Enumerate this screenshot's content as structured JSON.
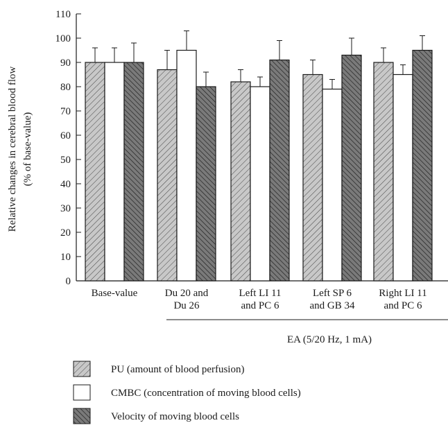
{
  "chart_data": {
    "type": "bar",
    "ylabel_line1": "Relative changes in cerebral blood flow",
    "ylabel_line2": "(% of base-value)",
    "ylim": [
      0,
      110
    ],
    "yticks": [
      0,
      10,
      20,
      30,
      40,
      50,
      60,
      70,
      80,
      90,
      100,
      110
    ],
    "categories": [
      [
        "Base-value"
      ],
      [
        "Du 20 and",
        "Du 26"
      ],
      [
        "Left LI 11",
        "and PC 6"
      ],
      [
        "Left SP 6",
        "and GB 34"
      ],
      [
        "Right LI 11",
        "and PC 6"
      ]
    ],
    "group_label": "EA (5/20 Hz, 1 mA)",
    "series": [
      {
        "name": "PU (amount of blood perfusion)",
        "values": [
          90,
          87,
          82,
          85,
          90
        ],
        "errors": [
          6,
          8,
          5,
          6,
          6
        ],
        "pattern": "hatch-light"
      },
      {
        "name": "CMBC (concentration of moving blood cells)",
        "values": [
          90,
          95,
          80,
          79,
          85
        ],
        "errors": [
          6,
          8,
          4,
          4,
          4
        ],
        "pattern": "white"
      },
      {
        "name": "Velocity of moving blood cells",
        "values": [
          90,
          80,
          91,
          93,
          95
        ],
        "errors": [
          8,
          6,
          8,
          7,
          6
        ],
        "pattern": "hatch-dark"
      }
    ],
    "legend_placement": "bottom",
    "grid": false
  }
}
